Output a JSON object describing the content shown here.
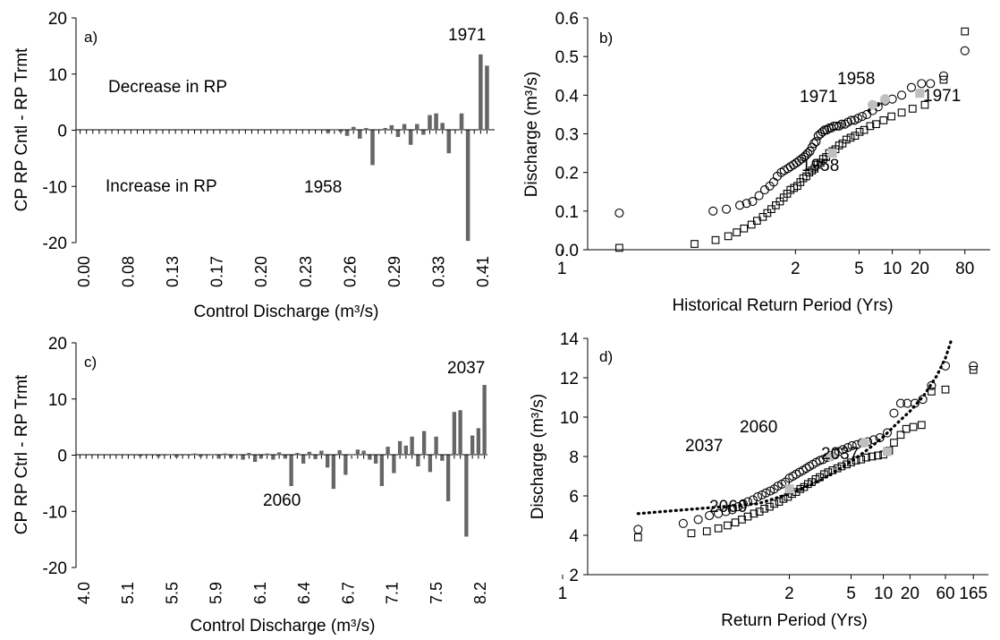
{
  "chart_data": [
    {
      "id": "a",
      "type": "bar",
      "panel_label": "a)",
      "ylabel": "CP RP Cntl - RP Trmt",
      "xlabel": "Control Discharge (m³/s)",
      "ylim": [
        -20,
        20
      ],
      "yticks": [
        20,
        10,
        0,
        -10,
        -20
      ],
      "xtick_labels": [
        "0.00",
        "0.08",
        "0.13",
        "0.17",
        "0.20",
        "0.23",
        "0.26",
        "0.29",
        "0.33",
        "0.41"
      ],
      "values": [
        0,
        0,
        0,
        0,
        0,
        0,
        0,
        0,
        0,
        0,
        0,
        0,
        0,
        0,
        0,
        0,
        0,
        0,
        0,
        0,
        0,
        0,
        0,
        0,
        0,
        0,
        0,
        0,
        0,
        0,
        0,
        0,
        0,
        0,
        0,
        0,
        0,
        0,
        0,
        -0.5,
        0.2,
        -0.3,
        -1,
        0.6,
        -1.5,
        0.4,
        -6.2,
        0,
        0.4,
        0.9,
        -1.2,
        1.1,
        -2.6,
        1.1,
        -0.8,
        2.7,
        3,
        1.3,
        -4.1,
        0,
        3,
        -19.7,
        0,
        13.5,
        11.5
      ],
      "annotations": [
        "Decrease in RP",
        "Increase in RP",
        "1958",
        "1971"
      ]
    },
    {
      "id": "b",
      "type": "scatter",
      "panel_label": "b)",
      "ylabel": "Discharge (m³/s)",
      "xlabel": "Historical Return Period (Yrs)",
      "xscale": "probability",
      "ylim": [
        0,
        0.6
      ],
      "yticks": [
        "0.0",
        "0.1",
        "0.2",
        "0.3",
        "0.4",
        "0.5",
        "0.6"
      ],
      "xticks": [
        1,
        2,
        5,
        10,
        20,
        80
      ],
      "annotations": [
        "1971",
        "1958",
        "1971",
        "1958"
      ],
      "series": [
        {
          "marker": "circle",
          "x": [
            1.01,
            1.16,
            1.22,
            1.3,
            1.35,
            1.4,
            1.46,
            1.52,
            1.58,
            1.63,
            1.68,
            1.74,
            1.79,
            1.85,
            1.9,
            1.96,
            2.02,
            2.08,
            2.14,
            2.2,
            2.25,
            2.3,
            2.36,
            2.42,
            2.48,
            2.55,
            2.62,
            2.7,
            2.78,
            2.86,
            2.95,
            3.05,
            3.15,
            3.27,
            3.4,
            3.55,
            3.7,
            3.9,
            4.1,
            4.35,
            4.6,
            4.9,
            5.3,
            5.8,
            6.5,
            7.3,
            8.5,
            10,
            12.5,
            16,
            21,
            27,
            40,
            80
          ],
          "y": [
            0.095,
            0.1,
            0.105,
            0.115,
            0.12,
            0.125,
            0.14,
            0.155,
            0.165,
            0.175,
            0.19,
            0.2,
            0.205,
            0.21,
            0.215,
            0.22,
            0.225,
            0.23,
            0.235,
            0.24,
            0.245,
            0.25,
            0.255,
            0.265,
            0.275,
            0.28,
            0.295,
            0.3,
            0.305,
            0.31,
            0.31,
            0.315,
            0.315,
            0.32,
            0.32,
            0.32,
            0.325,
            0.325,
            0.33,
            0.335,
            0.335,
            0.34,
            0.345,
            0.35,
            0.36,
            0.37,
            0.385,
            0.39,
            0.4,
            0.42,
            0.43,
            0.43,
            0.45,
            0.515
          ]
        },
        {
          "marker": "square",
          "x": [
            1.01,
            1.1,
            1.17,
            1.23,
            1.28,
            1.33,
            1.39,
            1.44,
            1.5,
            1.55,
            1.6,
            1.66,
            1.72,
            1.78,
            1.84,
            1.9,
            1.97,
            2.04,
            2.11,
            2.18,
            2.26,
            2.34,
            2.42,
            2.5,
            2.6,
            2.7,
            2.8,
            2.92,
            3.05,
            3.2,
            3.35,
            3.55,
            3.75,
            4.0,
            4.3,
            4.65,
            5.05,
            5.5,
            6.2,
            7.0,
            8.2,
            9.8,
            12.5,
            16.5,
            23,
            40,
            80
          ],
          "y": [
            0.005,
            0.015,
            0.025,
            0.035,
            0.045,
            0.055,
            0.065,
            0.075,
            0.085,
            0.095,
            0.105,
            0.115,
            0.125,
            0.135,
            0.145,
            0.155,
            0.16,
            0.165,
            0.175,
            0.185,
            0.19,
            0.2,
            0.205,
            0.21,
            0.22,
            0.225,
            0.235,
            0.24,
            0.25,
            0.255,
            0.26,
            0.27,
            0.275,
            0.285,
            0.29,
            0.295,
            0.305,
            0.31,
            0.32,
            0.325,
            0.335,
            0.345,
            0.355,
            0.365,
            0.375,
            0.44,
            0.565
          ]
        },
        {
          "marker": "dotted-line",
          "x": [
            6.0,
            8.5
          ],
          "y": [
            0.36,
            0.385
          ]
        },
        {
          "marker": "gray-circle",
          "x": [
            6.5,
            8.5
          ],
          "y": [
            0.375,
            0.39
          ]
        },
        {
          "marker": "gray-square",
          "x": [
            3.2,
            20
          ],
          "y": [
            0.25,
            0.405
          ]
        }
      ]
    },
    {
      "id": "c",
      "type": "bar",
      "panel_label": "c)",
      "ylabel": "CP RP Ctrl - RP Trmt",
      "xlabel": "Control Discharge (m³/s)",
      "ylim": [
        -20,
        20
      ],
      "yticks": [
        20,
        10,
        0,
        -10,
        -20
      ],
      "xtick_labels": [
        "4.0",
        "5.1",
        "5.5",
        "5.9",
        "6.1",
        "6.4",
        "6.7",
        "7.1",
        "7.5",
        "8.2"
      ],
      "values": [
        0,
        0,
        0,
        0,
        0,
        0,
        0,
        0,
        0,
        0,
        -0.2,
        0,
        0,
        -0.3,
        0,
        0.1,
        -0.4,
        0,
        0,
        0.3,
        -0.3,
        0,
        0.2,
        -0.6,
        0.3,
        -0.5,
        0.2,
        -0.8,
        0.4,
        -1.2,
        -0.6,
        0.3,
        -0.8,
        0.5,
        -0.6,
        -5.5,
        0.4,
        -1.5,
        0.6,
        -0.7,
        0.8,
        -2.2,
        -6,
        0.9,
        -3.5,
        0.2,
        1,
        0.8,
        -0.8,
        -1.5,
        -5.5,
        1.5,
        -3.2,
        2.5,
        1.7,
        3.3,
        -2,
        4.3,
        -3,
        3.3,
        -1,
        -8.2,
        7.7,
        8,
        -14.5,
        3.5,
        4.8,
        12.5
      ],
      "annotations": [
        "2060",
        "2037"
      ]
    },
    {
      "id": "d",
      "type": "scatter",
      "panel_label": "d)",
      "ylabel": "Discharge (m³/s)",
      "xlabel": "Return Period (Yrs)",
      "xscale": "probability",
      "ylim": [
        2,
        14
      ],
      "yticks": [
        2,
        4,
        6,
        8,
        10,
        12,
        14
      ],
      "xticks": [
        1,
        2,
        5,
        10,
        20,
        60,
        165
      ],
      "annotations": [
        "2060",
        "2037",
        "2037",
        "2060"
      ],
      "series": [
        {
          "marker": "circle",
          "x": [
            1.02,
            1.08,
            1.12,
            1.16,
            1.2,
            1.24,
            1.28,
            1.32,
            1.36,
            1.4,
            1.45,
            1.5,
            1.55,
            1.6,
            1.66,
            1.72,
            1.78,
            1.85,
            1.92,
            2.0,
            2.08,
            2.16,
            2.25,
            2.35,
            2.45,
            2.55,
            2.67,
            2.8,
            2.95,
            3.1,
            3.3,
            3.5,
            3.75,
            4.0,
            4.3,
            4.7,
            5.1,
            5.6,
            6.2,
            7.0,
            8.0,
            9.2,
            11,
            13,
            15.5,
            18.5,
            23,
            29,
            38,
            60,
            165
          ],
          "y": [
            4.3,
            4.6,
            4.8,
            5.0,
            5.1,
            5.2,
            5.3,
            5.45,
            5.6,
            5.7,
            5.8,
            5.95,
            6.05,
            6.15,
            6.25,
            6.35,
            6.5,
            6.6,
            6.7,
            6.9,
            7.0,
            7.1,
            7.2,
            7.3,
            7.4,
            7.5,
            7.6,
            7.7,
            7.8,
            7.85,
            7.95,
            8.05,
            8.15,
            8.25,
            8.35,
            8.45,
            8.55,
            8.6,
            8.7,
            8.75,
            8.85,
            8.95,
            9.2,
            10.2,
            10.7,
            10.7,
            10.7,
            10.9,
            11.6,
            12.6,
            12.6
          ]
        },
        {
          "marker": "square",
          "x": [
            1.02,
            1.1,
            1.15,
            1.2,
            1.25,
            1.3,
            1.35,
            1.4,
            1.46,
            1.52,
            1.58,
            1.65,
            1.72,
            1.8,
            1.88,
            1.97,
            2.06,
            2.16,
            2.27,
            2.38,
            2.5,
            2.63,
            2.78,
            2.95,
            3.15,
            3.35,
            3.6,
            3.9,
            4.2,
            4.6,
            5.0,
            5.5,
            6.1,
            6.8,
            7.7,
            8.8,
            10,
            11.5,
            13,
            15.5,
            18,
            22,
            28,
            38,
            60,
            165
          ],
          "y": [
            3.9,
            4.1,
            4.2,
            4.35,
            4.5,
            4.65,
            4.8,
            4.95,
            5.1,
            5.2,
            5.35,
            5.45,
            5.6,
            5.7,
            5.85,
            5.95,
            6.1,
            6.2,
            6.35,
            6.45,
            6.6,
            6.7,
            6.85,
            6.95,
            7.1,
            7.2,
            7.3,
            7.4,
            7.5,
            7.6,
            7.7,
            7.8,
            7.85,
            7.95,
            8.0,
            8.05,
            8.1,
            8.3,
            8.7,
            9.1,
            9.4,
            9.5,
            9.6,
            11.3,
            11.4,
            12.4
          ]
        },
        {
          "marker": "dotted-line",
          "x": [
            1.02,
            1.5,
            2,
            3,
            4,
            5,
            7,
            10,
            15,
            20,
            30,
            45,
            60,
            75
          ],
          "y": [
            5.1,
            5.6,
            6.1,
            6.8,
            7.35,
            7.75,
            8.35,
            9.0,
            9.8,
            10.3,
            11.1,
            12.1,
            13.0,
            14.0
          ]
        },
        {
          "marker": "gray-circle",
          "x": [
            3.5,
            6.5
          ],
          "y": [
            8.0,
            8.7
          ]
        },
        {
          "marker": "gray-square",
          "x": [
            2.0,
            11.0
          ],
          "y": [
            6.35,
            8.25
          ]
        }
      ]
    }
  ]
}
